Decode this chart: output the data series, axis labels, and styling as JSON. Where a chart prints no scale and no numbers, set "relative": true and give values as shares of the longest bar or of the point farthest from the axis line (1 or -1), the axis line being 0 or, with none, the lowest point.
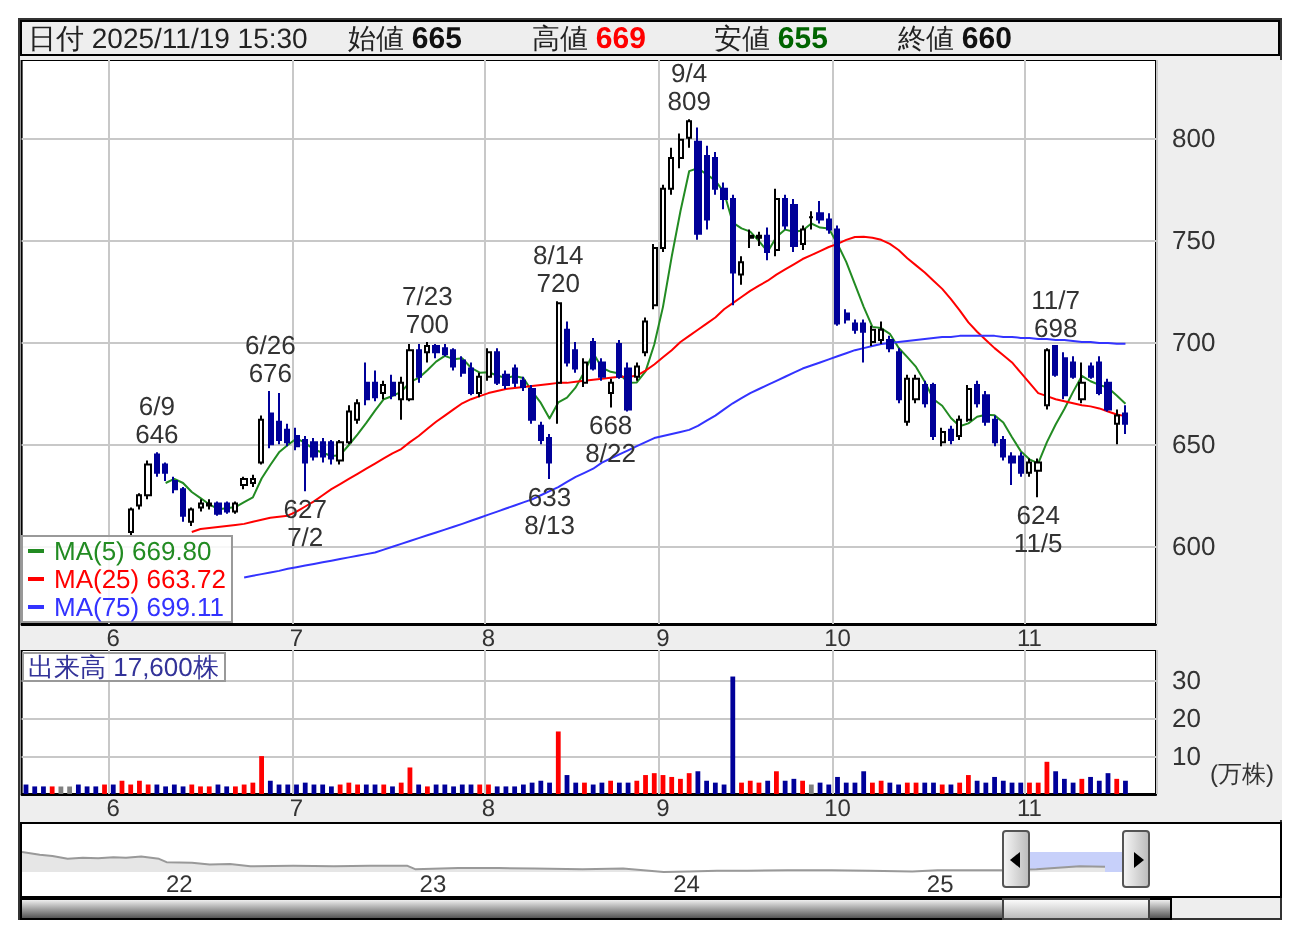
{
  "chart_data": [
    {
      "type": "candlestick",
      "annotations": [
        "日付 2025/11/19 15:30",
        "始値 665",
        "高値 669",
        "安値 655",
        "終値 660",
        {
          "text": "6/9\n646",
          "y": 646
        },
        {
          "text": "6/26\n676",
          "y": 676
        },
        {
          "text": "627\n7/2",
          "y": 627
        },
        {
          "text": "7/23\n700",
          "y": 700
        },
        {
          "text": "633\n8/13",
          "y": 633
        },
        {
          "text": "8/14\n720",
          "y": 720
        },
        {
          "text": "668\n8/22",
          "y": 668
        },
        {
          "text": "9/4\n809",
          "y": 809
        },
        {
          "text": "624\n11/5",
          "y": 624
        },
        {
          "text": "11/7\n698",
          "y": 698
        }
      ],
      "categories": [
        null,
        null,
        null,
        null,
        null,
        null,
        null,
        null,
        null,
        null,
        "6",
        null,
        null,
        null,
        null,
        null,
        null,
        null,
        null,
        null,
        null,
        null,
        null,
        null,
        null,
        null,
        null,
        null,
        null,
        null,
        null,
        "7",
        null,
        null,
        null,
        null,
        null,
        null,
        null,
        null,
        null,
        null,
        null,
        null,
        null,
        null,
        null,
        null,
        null,
        null,
        null,
        null,
        null,
        "8",
        null,
        null,
        null,
        null,
        null,
        null,
        null,
        null,
        null,
        null,
        null,
        null,
        null,
        null,
        null,
        null,
        null,
        null,
        null,
        "9",
        null,
        null,
        null,
        null,
        null,
        null,
        null,
        null,
        null,
        null,
        null,
        null,
        null,
        null,
        null,
        null,
        null,
        null,
        null,
        "10",
        null,
        null,
        null,
        null,
        null,
        null,
        null,
        null,
        null,
        null,
        null,
        null,
        null,
        null,
        null,
        null,
        null,
        null,
        null,
        null,
        null,
        "11",
        null,
        null,
        null,
        null,
        null,
        null,
        null,
        null,
        null,
        null,
        null,
        null,
        null,
        null
      ],
      "ohlc": [
        null,
        null,
        null,
        null,
        null,
        null,
        null,
        null,
        null,
        null,
        null,
        null,
        [
          607,
          619,
          605,
          618
        ],
        [
          620,
          626,
          618,
          625
        ],
        [
          625,
          642,
          623,
          640
        ],
        [
          645,
          646,
          634,
          636
        ],
        [
          640,
          641,
          632,
          636
        ],
        [
          632,
          634,
          626,
          628
        ],
        [
          628,
          629,
          612,
          615
        ],
        [
          612,
          619,
          610,
          618
        ],
        [
          619,
          623,
          617,
          621
        ],
        [
          620,
          623,
          618,
          621
        ],
        [
          621,
          622,
          615,
          616
        ],
        [
          621,
          622,
          616,
          617
        ],
        [
          617,
          622,
          616,
          621
        ],
        [
          630,
          634,
          628,
          633
        ],
        [
          631,
          635,
          629,
          633
        ],
        [
          641,
          664,
          640,
          662
        ],
        [
          665,
          676,
          648,
          650
        ],
        [
          661,
          675,
          650,
          652
        ],
        [
          657,
          660,
          649,
          651
        ],
        [
          654,
          658,
          647,
          649
        ],
        [
          652,
          654,
          627,
          641
        ],
        [
          651,
          653,
          642,
          644
        ],
        [
          651,
          653,
          641,
          644
        ],
        [
          651,
          652,
          640,
          643
        ],
        [
          642,
          652,
          640,
          651
        ],
        [
          651,
          669,
          650,
          666
        ],
        [
          662,
          672,
          660,
          670
        ],
        [
          680,
          690,
          669,
          672
        ],
        [
          680,
          686,
          671,
          673
        ],
        [
          675,
          681,
          672,
          679
        ],
        [
          680,
          684,
          672,
          674
        ],
        [
          672,
          683,
          662,
          680
        ],
        [
          672,
          699,
          671,
          696
        ],
        [
          696,
          699,
          680,
          683
        ],
        [
          695,
          700,
          690,
          698
        ],
        [
          698,
          699,
          692,
          695
        ],
        [
          697,
          699,
          693,
          694
        ],
        [
          696,
          697,
          686,
          688
        ],
        [
          691,
          693,
          683,
          685
        ],
        [
          687,
          690,
          674,
          675
        ],
        [
          675,
          685,
          673,
          683
        ],
        [
          683,
          697,
          681,
          695
        ],
        [
          695,
          697,
          679,
          680
        ],
        [
          684,
          686,
          677,
          679
        ],
        [
          687,
          689,
          678,
          680
        ],
        [
          681,
          683,
          676,
          678
        ],
        [
          677,
          679,
          660,
          662
        ],
        [
          659,
          661,
          650,
          652
        ],
        [
          653,
          655,
          633,
          641
        ],
        [
          680,
          720,
          660,
          719
        ],
        [
          706,
          710,
          688,
          690
        ],
        [
          696,
          700,
          685,
          687
        ],
        [
          680,
          692,
          678,
          690
        ],
        [
          700,
          702,
          686,
          687
        ],
        [
          690,
          692,
          681,
          683
        ],
        [
          675,
          682,
          668,
          680
        ],
        [
          699,
          701,
          682,
          683
        ],
        [
          687,
          690,
          666,
          667
        ],
        [
          683,
          690,
          681,
          688
        ],
        [
          695,
          712,
          693,
          710
        ],
        [
          718,
          748,
          716,
          746
        ],
        [
          746,
          777,
          744,
          775
        ],
        [
          775,
          795,
          772,
          790
        ],
        [
          790,
          802,
          785,
          799
        ],
        [
          800,
          809,
          795,
          808
        ],
        [
          798,
          805,
          750,
          753
        ],
        [
          791,
          796,
          755,
          760
        ],
        [
          790,
          793,
          772,
          775
        ],
        [
          775,
          778,
          765,
          770
        ],
        [
          770,
          772,
          718,
          734
        ],
        [
          733,
          742,
          728,
          739
        ],
        [
          751,
          755,
          746,
          752
        ],
        [
          751,
          754,
          747,
          752
        ],
        [
          752,
          756,
          740,
          744
        ],
        [
          745,
          775,
          742,
          770
        ],
        [
          770,
          772,
          755,
          757
        ],
        [
          767,
          770,
          744,
          747
        ],
        [
          748,
          757,
          745,
          755
        ],
        [
          761,
          764,
          755,
          761
        ],
        [
          763,
          769,
          758,
          760
        ],
        [
          760,
          763,
          753,
          755
        ],
        [
          755,
          757,
          708,
          709
        ],
        [
          714,
          716,
          709,
          711
        ],
        [
          709,
          711,
          704,
          706
        ],
        [
          709,
          711,
          690,
          705
        ],
        [
          700,
          708,
          698,
          706
        ],
        [
          701,
          710,
          699,
          706
        ],
        [
          701,
          703,
          695,
          697
        ],
        [
          695,
          697,
          670,
          672
        ],
        [
          661,
          684,
          659,
          682
        ],
        [
          672,
          684,
          670,
          682
        ],
        [
          679,
          681,
          668,
          670
        ],
        [
          679,
          680,
          652,
          654
        ],
        [
          651,
          658,
          649,
          656
        ],
        [
          657,
          659,
          650,
          652
        ],
        [
          654,
          664,
          652,
          662
        ],
        [
          662,
          679,
          661,
          677
        ],
        [
          679,
          681,
          668,
          670
        ],
        [
          674,
          676,
          659,
          661
        ],
        [
          662,
          664,
          649,
          651
        ],
        [
          652,
          654,
          642,
          644
        ],
        [
          644,
          646,
          630,
          641
        ],
        [
          644,
          646,
          634,
          636
        ],
        [
          636,
          643,
          634,
          641
        ],
        [
          637,
          643,
          624,
          641
        ],
        [
          669,
          697,
          667,
          696
        ],
        [
          698,
          698,
          683,
          684
        ],
        [
          692,
          695,
          672,
          674
        ],
        [
          690,
          693,
          682,
          683
        ],
        [
          672,
          690,
          670,
          680
        ],
        [
          688,
          690,
          682,
          683
        ],
        [
          690,
          693,
          674,
          675
        ],
        [
          680,
          682,
          666,
          667
        ],
        [
          660,
          667,
          650,
          664
        ],
        [
          665,
          669,
          655,
          660
        ],
        null,
        null,
        null
      ],
      "series": [
        {
          "name": "MA(5) 669.80",
          "type": "line",
          "color": "#228b22",
          "values": [
            null,
            null,
            null,
            null,
            null,
            null,
            null,
            null,
            null,
            null,
            null,
            null,
            null,
            null,
            null,
            null,
            631.0,
            633.0,
            631.0,
            626.6,
            623.6,
            620.6,
            618.2,
            618.6,
            619.2,
            621.6,
            624.0,
            633.2,
            639.8,
            646.0,
            649.6,
            652.8,
            650.6,
            647.4,
            645.8,
            644.2,
            644.6,
            649.6,
            654.8,
            660.4,
            666.4,
            672.0,
            673.6,
            675.6,
            680.4,
            682.4,
            686.2,
            690.4,
            693.2,
            691.6,
            692.0,
            687.4,
            685.0,
            685.2,
            683.6,
            682.4,
            683.4,
            682.4,
            675.8,
            670.2,
            662.6,
            670.4,
            672.8,
            677.8,
            685.4,
            694.6,
            687.4,
            685.4,
            684.6,
            680.0,
            680.2,
            685.6,
            698.8,
            717.2,
            741.8,
            764.0,
            783.6,
            785.0,
            782.0,
            779.0,
            773.2,
            758.4,
            755.6,
            754.0,
            749.4,
            744.2,
            751.4,
            755.0,
            754.0,
            754.6,
            758.0,
            756.0,
            755.6,
            748.0,
            739.2,
            728.2,
            717.2,
            707.4,
            706.8,
            704.0,
            697.2,
            692.6,
            687.8,
            680.6,
            672.0,
            668.8,
            662.8,
            658.8,
            660.2,
            663.4,
            664.4,
            664.2,
            660.6,
            653.4,
            646.6,
            642.6,
            640.6,
            651.0,
            659.6,
            667.2,
            675.6,
            683.4,
            680.8,
            679.0,
            677.6,
            673.8,
            669.8,
            null,
            null,
            null
          ]
        },
        {
          "name": "MA(25) 663.72",
          "type": "line",
          "color": "#ff0000",
          "values": [
            null,
            null,
            null,
            null,
            null,
            null,
            null,
            null,
            null,
            null,
            null,
            null,
            null,
            null,
            null,
            null,
            null,
            null,
            null,
            607,
            608.5,
            609,
            609.5,
            610,
            610.5,
            611,
            612,
            613,
            614,
            614.5,
            615,
            617,
            619.5,
            622,
            625,
            628,
            630.5,
            633,
            635.5,
            638,
            640.5,
            643,
            645.5,
            647.6,
            651,
            654,
            657.5,
            661,
            664,
            667,
            670,
            672,
            673.5,
            675,
            676,
            677,
            677.5,
            678,
            678.5,
            679,
            679.5,
            680,
            680,
            680.5,
            681,
            681.5,
            682,
            682.5,
            683,
            683,
            683.5,
            686,
            689,
            692.5,
            696,
            700,
            703,
            706,
            709,
            712,
            716,
            719,
            722,
            725,
            727.6,
            730,
            733,
            735.5,
            738,
            740.6,
            742.5,
            744.5,
            746.5,
            748,
            750,
            751.4,
            751.5,
            751,
            750,
            748,
            745,
            741,
            737.5,
            734,
            730,
            726,
            721,
            715.5,
            709.6,
            705,
            701,
            697,
            693.5,
            690,
            685,
            680,
            675,
            673.5,
            672,
            671,
            670,
            669,
            668.5,
            667.5,
            666,
            664.5,
            663.72,
            null,
            null,
            null
          ]
        },
        {
          "name": "MA(75) 699.11",
          "type": "line",
          "color": "#3333ff",
          "values": [
            null,
            null,
            null,
            null,
            null,
            null,
            null,
            null,
            null,
            null,
            null,
            null,
            null,
            null,
            null,
            null,
            null,
            null,
            null,
            null,
            null,
            null,
            null,
            null,
            null,
            584.8,
            585.6,
            586.4,
            587.2,
            588,
            589,
            589.8,
            590.6,
            591.4,
            592.2,
            593,
            593.8,
            594.6,
            595.4,
            596.2,
            597,
            598.4,
            599.8,
            601.2,
            602.6,
            604,
            605.4,
            606.8,
            608.2,
            609.6,
            611,
            612.5,
            614,
            615.5,
            617,
            618.5,
            620,
            621.5,
            623,
            625,
            627,
            629,
            631.5,
            634,
            636,
            638,
            641,
            643,
            645,
            647,
            649,
            651,
            653,
            654,
            655,
            656,
            657,
            659,
            661.5,
            664,
            667,
            670,
            672.5,
            675,
            677,
            679,
            681,
            683,
            685,
            687,
            688.5,
            690,
            691.5,
            693,
            694.5,
            696,
            697,
            698,
            699,
            699.5,
            700,
            700.5,
            701,
            701.5,
            702,
            702.5,
            702.5,
            703,
            703,
            703,
            703,
            703,
            702.5,
            702.5,
            702,
            702,
            701.5,
            701.5,
            701,
            701,
            700.5,
            700,
            700,
            699.5,
            699.5,
            699.2,
            699.11,
            null,
            null,
            null
          ]
        }
      ],
      "ylim": [
        562,
        838
      ],
      "yticks": [
        600,
        650,
        700,
        750,
        800
      ],
      "grid": true,
      "legend": "bottom left",
      "marker": "none"
    },
    {
      "type": "bar",
      "title": "出来高 17,600株",
      "ylabel": "(万株)",
      "categories": [
        null,
        null,
        null,
        null,
        null,
        null,
        null,
        null,
        null,
        null,
        "6",
        null,
        null,
        null,
        null,
        null,
        null,
        null,
        null,
        null,
        null,
        null,
        null,
        null,
        null,
        null,
        null,
        null,
        null,
        null,
        null,
        "7",
        null,
        null,
        null,
        null,
        null,
        null,
        null,
        null,
        null,
        null,
        null,
        null,
        null,
        null,
        null,
        null,
        null,
        null,
        null,
        null,
        null,
        "8",
        null,
        null,
        null,
        null,
        null,
        null,
        null,
        null,
        null,
        null,
        null,
        null,
        null,
        null,
        null,
        null,
        null,
        null,
        null,
        "9",
        null,
        null,
        null,
        null,
        null,
        null,
        null,
        null,
        null,
        null,
        null,
        null,
        null,
        null,
        null,
        null,
        null,
        null,
        null,
        "10",
        null,
        null,
        null,
        null,
        null,
        null,
        null,
        null,
        null,
        null,
        null,
        null,
        null,
        null,
        null,
        null,
        null,
        null,
        null,
        null,
        null,
        "11",
        null,
        null,
        null,
        null,
        null,
        null,
        null,
        null,
        null,
        null,
        null,
        null,
        null,
        null
      ],
      "values": [
        2.5,
        2,
        2,
        2,
        2,
        2,
        2.5,
        2,
        2,
        2.5,
        2.5,
        3.5,
        2.5,
        3.5,
        2.5,
        2.5,
        2,
        2.5,
        2,
        2.5,
        2,
        2,
        2.5,
        2,
        2,
        2.5,
        3,
        10,
        3.5,
        2.5,
        2.5,
        2.5,
        3,
        2.5,
        2.5,
        2,
        2.5,
        3,
        2.5,
        2.5,
        2.5,
        2.5,
        2,
        3,
        7,
        2.5,
        2,
        2.5,
        2.5,
        2,
        2.5,
        2.5,
        2.5,
        2.5,
        2,
        2,
        2,
        2.5,
        3,
        3.5,
        3,
        16.5,
        5,
        3,
        3,
        2.5,
        3,
        3.5,
        3,
        3,
        3.5,
        5,
        5.5,
        5,
        4.5,
        4,
        5.5,
        6,
        3.5,
        3,
        2.5,
        31,
        3,
        3.5,
        3,
        3.5,
        6,
        3.5,
        4,
        3.5,
        2.5,
        3,
        2.5,
        4.5,
        3,
        3,
        6,
        3,
        3.5,
        3,
        2.5,
        3,
        3,
        3,
        3,
        2.5,
        2.5,
        3,
        5,
        3.5,
        3,
        4.5,
        3.5,
        3,
        3,
        3,
        3,
        8.5,
        6,
        4,
        3,
        4,
        4.5,
        3.5,
        5.5,
        4,
        3.5,
        null,
        null,
        null
      ],
      "colors": [
        "#000099",
        "#000099",
        "#000099",
        "#ff0000",
        "#808080",
        "#808080",
        "#000099",
        "#000099",
        "#000099",
        "#ff0000",
        "#000099",
        "#ff0000",
        "#ff0000",
        "#ff0000",
        "#ff0000",
        "#000099",
        "#000099",
        "#000099",
        "#000099",
        "#ff0000",
        "#ff0000",
        "#ff0000",
        "#000099",
        "#000099",
        "#ff0000",
        "#ff0000",
        "#ff0000",
        "#ff0000",
        "#000099",
        "#000099",
        "#000099",
        "#000099",
        "#000099",
        "#000099",
        "#000099",
        "#000099",
        "#ff0000",
        "#ff0000",
        "#ff0000",
        "#000099",
        "#000099",
        "#ff0000",
        "#000099",
        "#ff0000",
        "#ff0000",
        "#000099",
        "#ff0000",
        "#000099",
        "#000099",
        "#000099",
        "#000099",
        "#000099",
        "#ff0000",
        "#ff0000",
        "#000099",
        "#000099",
        "#000099",
        "#000099",
        "#000099",
        "#000099",
        "#000099",
        "#ff0000",
        "#000099",
        "#000099",
        "#ff0000",
        "#000099",
        "#000099",
        "#ff0000",
        "#000099",
        "#000099",
        "#ff0000",
        "#ff0000",
        "#ff0000",
        "#ff0000",
        "#ff0000",
        "#ff0000",
        "#ff0000",
        "#000099",
        "#000099",
        "#000099",
        "#000099",
        "#000099",
        "#ff0000",
        "#ff0000",
        "#ff0000",
        "#000099",
        "#ff0000",
        "#000099",
        "#000099",
        "#ff0000",
        "#808080",
        "#000099",
        "#000099",
        "#000099",
        "#000099",
        "#000099",
        "#000099",
        "#ff0000",
        "#ff0000",
        "#000099",
        "#000099",
        "#ff0000",
        "#ff0000",
        "#000099",
        "#000099",
        "#ff0000",
        "#000099",
        "#ff0000",
        "#ff0000",
        "#000099",
        "#000099",
        "#000099",
        "#000099",
        "#000099",
        "#000099",
        "#ff0000",
        "#ff0000",
        "#ff0000",
        "#000099",
        "#000099",
        "#000099",
        "#ff0000",
        "#000099",
        "#000099",
        "#000099",
        "#ff0000",
        "#000099",
        null,
        null,
        null
      ],
      "ylim": [
        0,
        38
      ],
      "yticks": [
        10,
        20,
        30
      ],
      "grid": true
    },
    {
      "type": "area",
      "relative": true,
      "color": "#999999",
      "x": [
        21.38,
        21.45,
        21.5,
        21.56,
        21.62,
        21.68,
        21.74,
        21.79,
        21.85,
        21.92,
        21.95,
        22.05,
        22.12,
        22.2,
        22.28,
        22.45,
        22.61,
        22.75,
        22.9,
        22.93,
        23.1,
        23.26,
        23.4,
        23.59,
        23.75,
        23.91,
        24.01,
        24.12,
        24.24,
        24.4,
        24.57,
        24.72,
        24.89,
        24.99,
        25.1,
        25.25,
        25.38,
        25.45,
        25.55,
        25.65
      ],
      "values": [
        1,
        0.86,
        0.8,
        0.66,
        0.71,
        0.69,
        0.74,
        0.71,
        0.77,
        0.66,
        0.49,
        0.46,
        0.37,
        0.4,
        0.29,
        0.31,
        0.29,
        0.31,
        0.31,
        0.14,
        0.2,
        0.2,
        0.17,
        0.14,
        0.17,
        0,
        0.03,
        0.06,
        0.06,
        0.09,
        0.09,
        0.06,
        0.03,
        0.09,
        0.09,
        0.09,
        0.14,
        0.2,
        0.29,
        0.26
      ],
      "xlim": [
        21.38,
        26.34
      ],
      "xticks": [
        22,
        23,
        24,
        25
      ],
      "bands": [
        {
          "axis": "x",
          "from": 25.31,
          "to": 25.78,
          "color": "#b4c0f8"
        }
      ]
    }
  ]
}
